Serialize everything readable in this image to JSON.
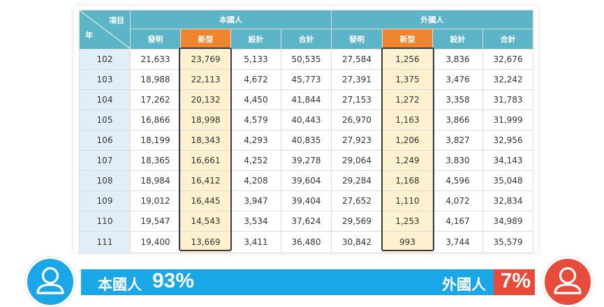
{
  "header": {
    "corner_top": "項目",
    "corner_bottom": "年",
    "group_domestic": "本國人",
    "group_foreign": "外國人",
    "columns": [
      "發明",
      "新型",
      "設計",
      "合計",
      "發明",
      "新型",
      "設計",
      "合計"
    ]
  },
  "rows": [
    [
      "102",
      "21,633",
      "23,769",
      "5,133",
      "50,535",
      "27,584",
      "1,256",
      "3,836",
      "32,676"
    ],
    [
      "103",
      "18,988",
      "22,113",
      "4,672",
      "45,773",
      "27,391",
      "1,375",
      "3,476",
      "32,242"
    ],
    [
      "104",
      "17,262",
      "20,132",
      "4,450",
      "41,844",
      "27,153",
      "1,272",
      "3,358",
      "31,783"
    ],
    [
      "105",
      "16,866",
      "18,998",
      "4,579",
      "40,443",
      "26,970",
      "1,163",
      "3,866",
      "31,999"
    ],
    [
      "106",
      "18,199",
      "18,343",
      "4,293",
      "40,835",
      "27,923",
      "1,206",
      "3,827",
      "32,956"
    ],
    [
      "107",
      "18,365",
      "16,661",
      "4,252",
      "39,278",
      "29,064",
      "1,249",
      "3,830",
      "34,143"
    ],
    [
      "108",
      "18,984",
      "16,412",
      "4,208",
      "39,604",
      "29,284",
      "1,168",
      "4,596",
      "35,048"
    ],
    [
      "109",
      "19,012",
      "16,445",
      "3,947",
      "39,404",
      "27,652",
      "1,110",
      "4,072",
      "32,834"
    ],
    [
      "110",
      "19,547",
      "14,543",
      "3,534",
      "37,624",
      "29,569",
      "1,253",
      "4,167",
      "34,989"
    ],
    [
      "111",
      "19,400",
      "13,669",
      "3,411",
      "36,480",
      "30,842",
      "993",
      "3,744",
      "35,579"
    ]
  ],
  "share_bar": {
    "domestic_label": "本國人",
    "domestic_pct": "93%",
    "foreign_label": "外國人",
    "foreign_pct": "7%",
    "domestic_share": 0.93,
    "foreign_share": 0.07
  },
  "colors": {
    "header_teal": "#5bb5c6",
    "new_type_orange": "#f0852f",
    "year_cell_blue": "#e1eef7",
    "new_type_cell": "#fdf1cf",
    "domestic_blue": "#1aa7e8",
    "foreign_red": "#e84b3a"
  },
  "icons": {
    "domestic_avatar": "user-icon",
    "foreign_avatar": "user-icon"
  }
}
